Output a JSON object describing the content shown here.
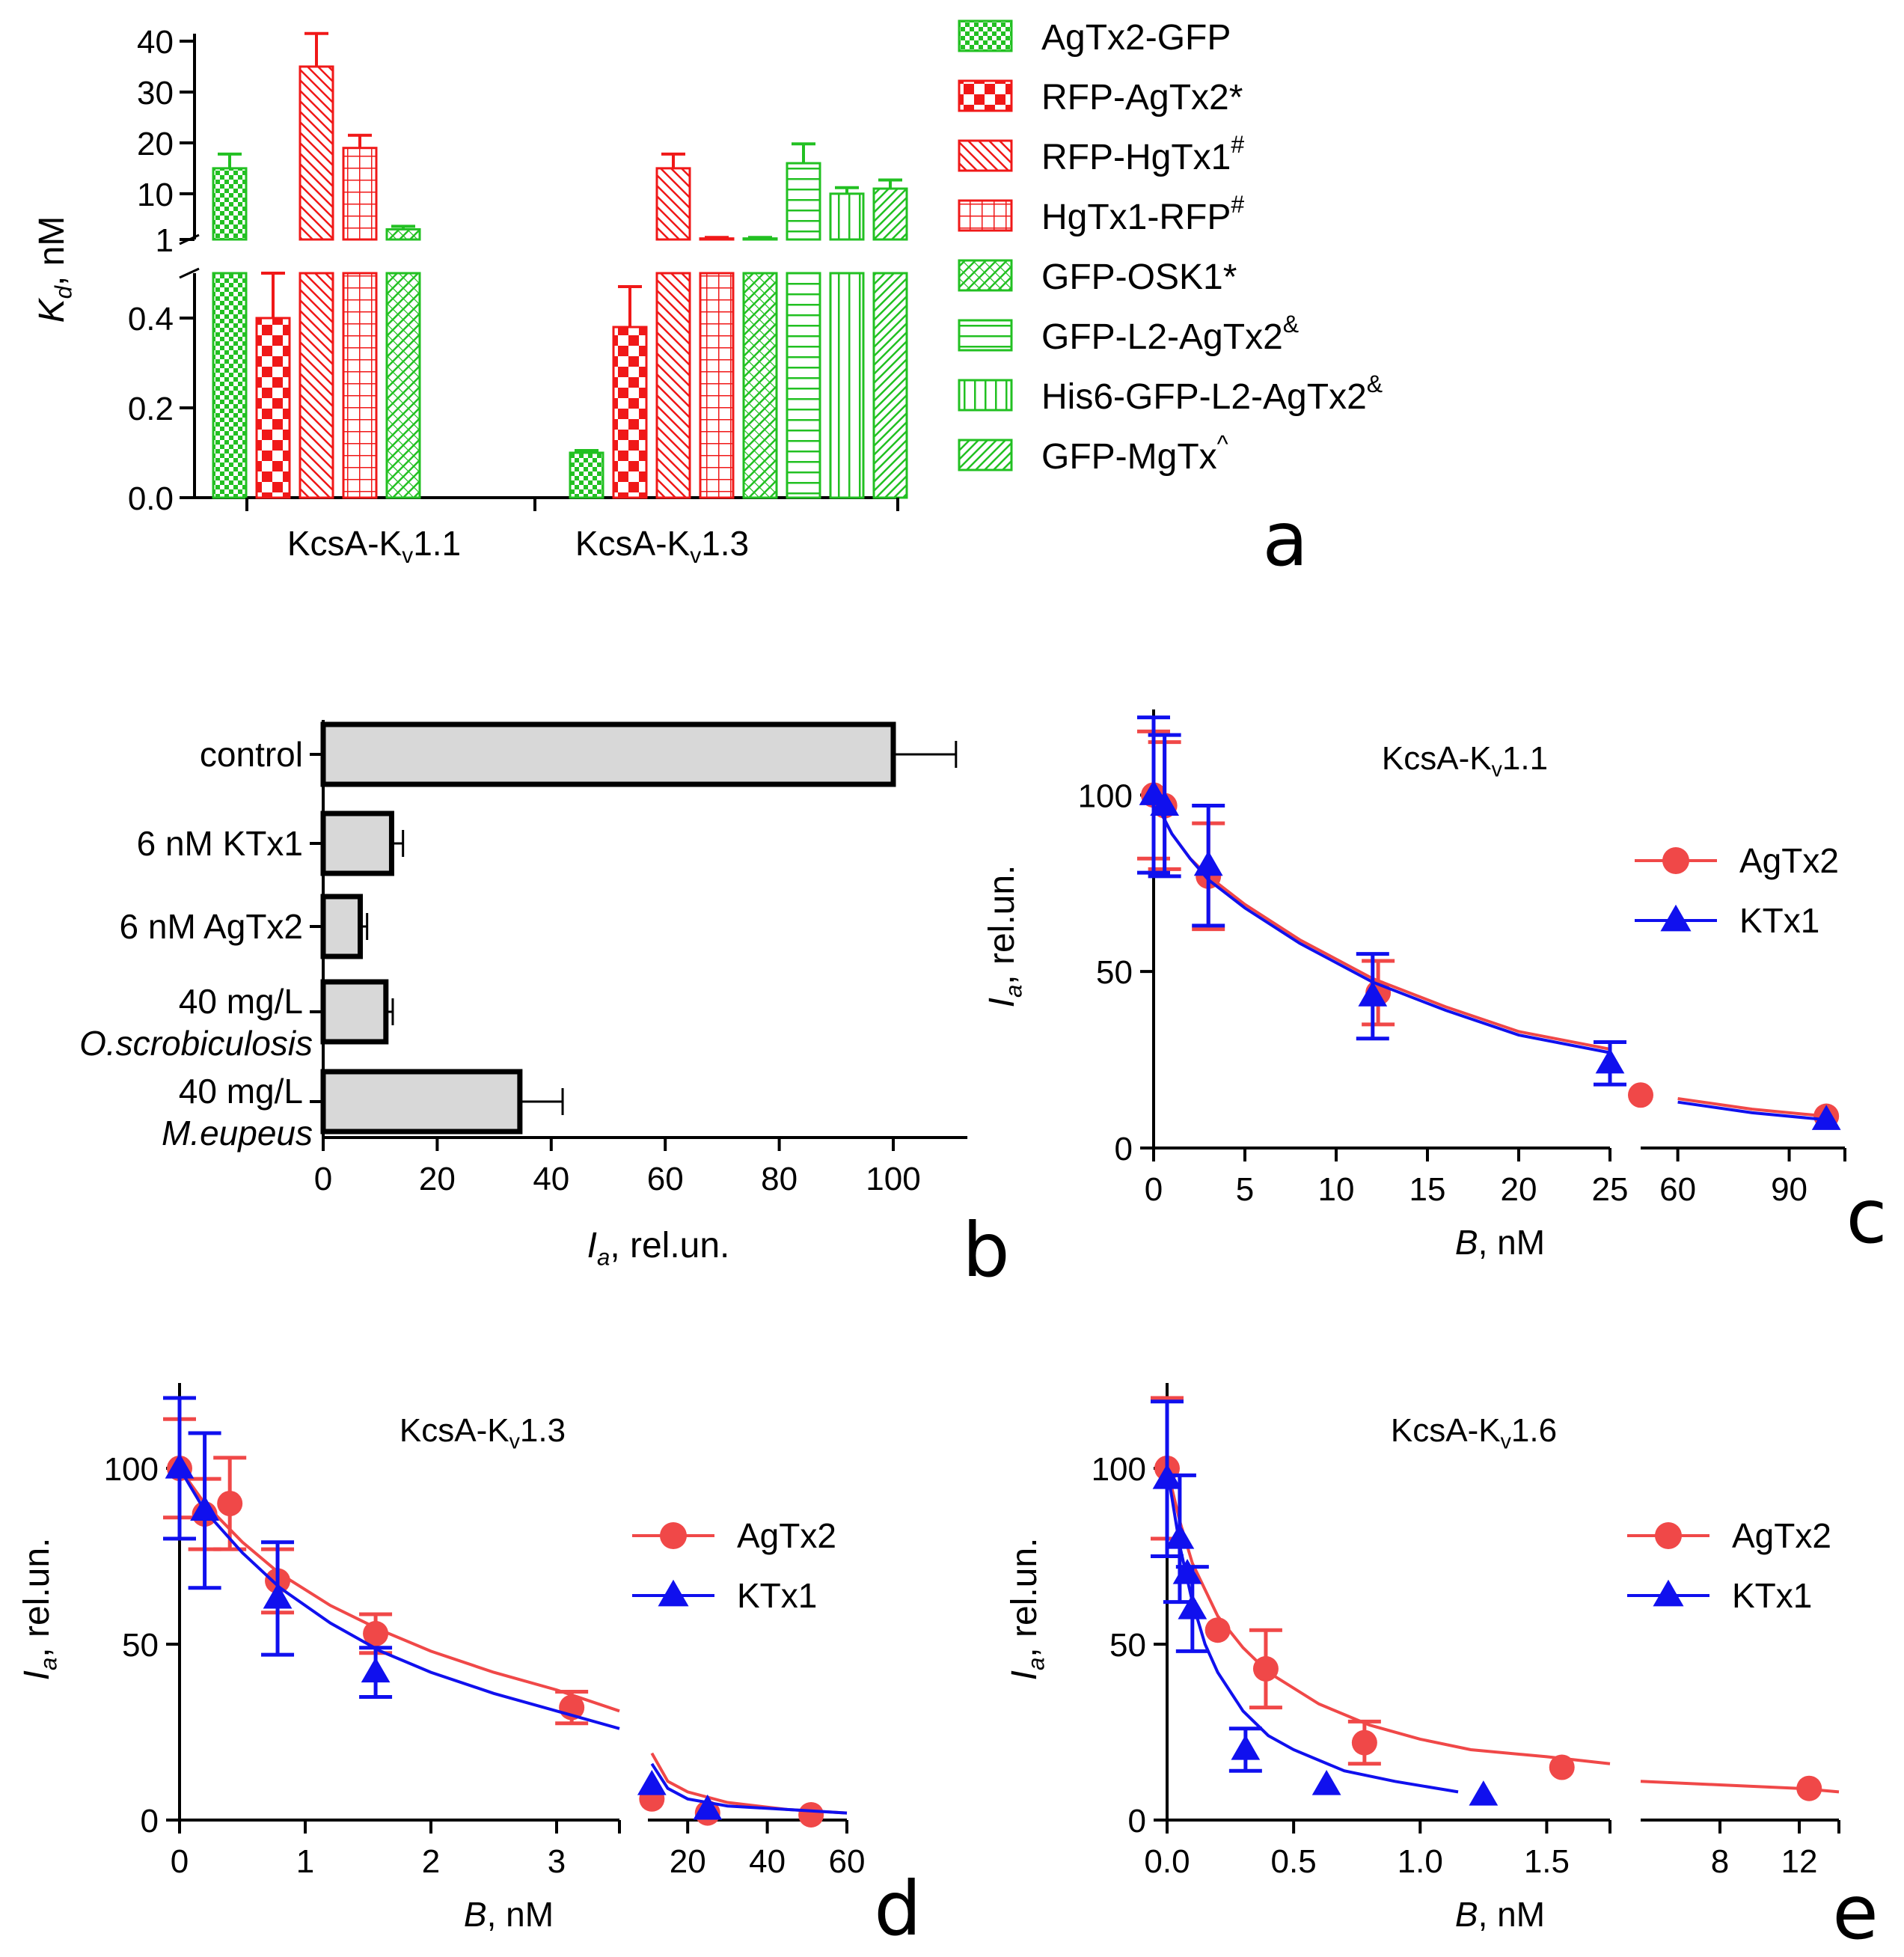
{
  "colors": {
    "green": "#22c022",
    "red": "#f01818",
    "blue": "#1010ee",
    "fit_red": "#f04848",
    "grey": "#d8d8d8",
    "axis": "#000000"
  },
  "chart_data": [
    {
      "id": "a",
      "type": "bar",
      "panel_label": "a",
      "ylabel_main": "K",
      "ylabel_sub": "d",
      "ylabel_unit": ", nM",
      "categories": [
        "KcsA-K",
        "KcsA-K"
      ],
      "category_subs": [
        "v",
        "v"
      ],
      "category_suffixes": [
        "1.1",
        "1.3"
      ],
      "upper_axis": {
        "range": [
          1,
          40
        ],
        "ticks": [
          "40",
          "30",
          "20",
          "10",
          "1"
        ],
        "tick_values": [
          40,
          30,
          20,
          10,
          1
        ]
      },
      "lower_axis": {
        "range": [
          0,
          0.5
        ],
        "ticks": [
          "0.4",
          "0.2",
          "0.0"
        ],
        "tick_values": [
          0.4,
          0.2,
          0.0
        ]
      },
      "series": [
        {
          "name": "AgTx2-GFP",
          "sup": "",
          "color": "green",
          "pattern": "check",
          "values": [
            15,
            0.1
          ],
          "errors": [
            2.8,
            0.005
          ]
        },
        {
          "name": "RFP-AgTx2*",
          "sup": "",
          "color": "red",
          "pattern": "bigcheck",
          "values": [
            0.4,
            0.38
          ],
          "errors": [
            0.1,
            0.09
          ]
        },
        {
          "name": "RFP-HgTx1",
          "sup": "#",
          "color": "red",
          "pattern": "diag",
          "values": [
            35,
            15
          ],
          "errors": [
            6.5,
            2.8
          ]
        },
        {
          "name": "HgTx1-RFP",
          "sup": "#",
          "color": "red",
          "pattern": "grid",
          "values": [
            19,
            1.2
          ],
          "errors": [
            2.5,
            0.2
          ]
        },
        {
          "name": "GFP-OSK1*",
          "sup": "",
          "color": "green",
          "pattern": "hatchcross",
          "values": [
            3,
            1.2
          ],
          "errors": [
            0.6,
            0.2
          ]
        },
        {
          "name": "GFP-L2-AgTx2",
          "sup": "&",
          "color": "green",
          "pattern": "horiz",
          "values": [
            null,
            16
          ],
          "errors": [
            null,
            3.8
          ]
        },
        {
          "name": "His6-GFP-L2-AgTx2",
          "sup": "&",
          "color": "green",
          "pattern": "vert",
          "values": [
            null,
            10
          ],
          "errors": [
            null,
            1.2
          ]
        },
        {
          "name": "GFP-MgTx",
          "sup": "^",
          "color": "green",
          "pattern": "diag2",
          "values": [
            null,
            11
          ],
          "errors": [
            null,
            1.7
          ]
        }
      ]
    },
    {
      "id": "b",
      "type": "bar",
      "orientation": "horizontal",
      "panel_label": "b",
      "xlabel_main": "I",
      "xlabel_sub": "a",
      "xlabel_unit": ", rel.un.",
      "xlim": [
        0,
        113
      ],
      "xticks": [
        "0",
        "20",
        "40",
        "60",
        "80",
        "100"
      ],
      "xtick_values": [
        0,
        20,
        40,
        60,
        80,
        100
      ],
      "categories": [
        {
          "line1": "control",
          "line2": ""
        },
        {
          "line1": "6 nM KTx1",
          "line2": ""
        },
        {
          "line1": "6 nM AgTx2",
          "line2": ""
        },
        {
          "line1": "40 mg/L",
          "line2": "O.scrobiculosis"
        },
        {
          "line1": "40 mg/L",
          "line2": "M.eupeus"
        }
      ],
      "values": [
        100,
        12,
        6.5,
        11,
        34.5
      ],
      "errors": [
        11,
        2,
        1.2,
        1.2,
        7.5
      ]
    },
    {
      "id": "c",
      "type": "scatter",
      "panel_label": "c",
      "title": "KcsA-K",
      "title_sub": "v",
      "title_suffix": "1.1",
      "ylabel_main": "I",
      "ylabel_sub": "a",
      "ylabel_unit": ", rel.un.",
      "xlabel_main": "B",
      "xlabel_unit": ", nM",
      "ylim": [
        0,
        120
      ],
      "yticks": [
        "0",
        "50",
        "100"
      ],
      "ytick_values": [
        0,
        50,
        100
      ],
      "x_segments": [
        {
          "range": [
            0,
            25
          ],
          "ticks": [
            "0",
            "5",
            "10",
            "15",
            "20",
            "25"
          ],
          "tick_values": [
            0,
            5,
            10,
            15,
            20,
            25
          ]
        },
        {
          "range": [
            50,
            105
          ],
          "ticks": [
            "60",
            "90"
          ],
          "tick_values": [
            60,
            90
          ]
        }
      ],
      "series": [
        {
          "name": "AgTx2",
          "color": "red",
          "marker": "circle",
          "x": [
            0,
            0.6,
            3,
            12.3,
            50,
            100
          ],
          "y": [
            100,
            97,
            77,
            44,
            15,
            9
          ],
          "err": [
            18,
            18,
            15,
            9,
            0,
            0
          ],
          "fit": [
            [
              0,
              100
            ],
            [
              0.5,
              94
            ],
            [
              1,
              89
            ],
            [
              2,
              82
            ],
            [
              3,
              77
            ],
            [
              5,
              69
            ],
            [
              8,
              59
            ],
            [
              12,
              48
            ],
            [
              16,
              40
            ],
            [
              20,
              33
            ],
            [
              25,
              28
            ],
            [
              48,
              17
            ],
            [
              60,
              14
            ],
            [
              80,
              11
            ],
            [
              100,
              9
            ]
          ]
        },
        {
          "name": "KTx1",
          "color": "blue",
          "marker": "triangle",
          "x": [
            0,
            0.6,
            3,
            12,
            25,
            100
          ],
          "y": [
            100,
            97,
            80,
            43,
            24,
            8
          ],
          "err": [
            22,
            20,
            17,
            12,
            6,
            0
          ],
          "fit": [
            [
              0,
              100
            ],
            [
              0.5,
              94
            ],
            [
              1,
              89
            ],
            [
              2,
              82
            ],
            [
              3,
              76
            ],
            [
              5,
              68
            ],
            [
              8,
              58
            ],
            [
              12,
              47
            ],
            [
              16,
              39
            ],
            [
              20,
              32
            ],
            [
              25,
              27
            ],
            [
              48,
              16
            ],
            [
              60,
              13
            ],
            [
              80,
              10
            ],
            [
              100,
              8
            ]
          ]
        }
      ]
    },
    {
      "id": "d",
      "type": "scatter",
      "panel_label": "d",
      "title": "KcsA-K",
      "title_sub": "v",
      "title_suffix": "1.3",
      "ylabel_main": "I",
      "ylabel_sub": "a",
      "ylabel_unit": ", rel.un.",
      "xlabel_main": "B",
      "xlabel_unit": ", nM",
      "ylim": [
        0,
        120
      ],
      "yticks": [
        "0",
        "50",
        "100"
      ],
      "ytick_values": [
        0,
        50,
        100
      ],
      "x_segments": [
        {
          "range": [
            0,
            3.5
          ],
          "ticks": [
            "0",
            "1",
            "2",
            "3"
          ],
          "tick_values": [
            0,
            1,
            2,
            3
          ]
        },
        {
          "range": [
            10,
            60
          ],
          "ticks": [
            "20",
            "40",
            "60"
          ],
          "tick_values": [
            20,
            40,
            60
          ]
        }
      ],
      "series": [
        {
          "name": "AgTx2",
          "color": "red",
          "marker": "circle",
          "x": [
            0,
            0.2,
            0.4,
            0.78,
            1.56,
            3.12,
            11,
            25,
            51
          ],
          "y": [
            100,
            87,
            90,
            68,
            53,
            32,
            6,
            2,
            1.5
          ],
          "err": [
            14,
            10,
            13,
            9,
            5.5,
            4.5,
            0,
            0,
            0
          ],
          "fit": [
            [
              0,
              100
            ],
            [
              0.2,
              90
            ],
            [
              0.5,
              79
            ],
            [
              0.8,
              70
            ],
            [
              1.2,
              61
            ],
            [
              1.6,
              54
            ],
            [
              2.0,
              48
            ],
            [
              2.5,
              42
            ],
            [
              3.0,
              37
            ],
            [
              3.5,
              31
            ],
            [
              11,
              19
            ],
            [
              15,
              11
            ],
            [
              20,
              8
            ],
            [
              30,
              5
            ],
            [
              45,
              3
            ],
            [
              60,
              2
            ]
          ]
        },
        {
          "name": "KTx1",
          "color": "blue",
          "marker": "triangle",
          "x": [
            0,
            0.2,
            0.78,
            1.56,
            11,
            25
          ],
          "y": [
            100,
            88,
            63,
            42,
            10,
            3
          ],
          "err": [
            20,
            22,
            16,
            7,
            0,
            0
          ],
          "fit": [
            [
              0,
              100
            ],
            [
              0.2,
              88
            ],
            [
              0.5,
              76
            ],
            [
              0.8,
              66
            ],
            [
              1.2,
              56
            ],
            [
              1.6,
              48
            ],
            [
              2.0,
              42
            ],
            [
              2.5,
              36
            ],
            [
              3.0,
              31
            ],
            [
              3.5,
              26
            ],
            [
              11,
              16
            ],
            [
              15,
              9
            ],
            [
              20,
              6
            ],
            [
              30,
              4
            ],
            [
              45,
              3
            ],
            [
              60,
              2
            ]
          ]
        }
      ]
    },
    {
      "id": "e",
      "type": "scatter",
      "panel_label": "e",
      "title": "KcsA-K",
      "title_sub": "v",
      "title_suffix": "1.6",
      "ylabel_main": "I",
      "ylabel_sub": "a",
      "ylabel_unit": ", rel.un.",
      "xlabel_main": "B",
      "xlabel_unit": ", nM",
      "ylim": [
        0,
        120
      ],
      "yticks": [
        "0",
        "50",
        "100"
      ],
      "ytick_values": [
        0,
        50,
        100
      ],
      "x_segments": [
        {
          "range": [
            0,
            1.75
          ],
          "ticks": [
            "0.0",
            "0.5",
            "1.0",
            "1.5"
          ],
          "tick_values": [
            0,
            0.5,
            1.0,
            1.5
          ]
        },
        {
          "range": [
            4,
            14
          ],
          "ticks": [
            "8",
            "12"
          ],
          "tick_values": [
            8,
            12
          ]
        }
      ],
      "series": [
        {
          "name": "AgTx2",
          "color": "red",
          "marker": "circle",
          "x": [
            0,
            0.2,
            0.39,
            0.78,
            1.56,
            12.5
          ],
          "y": [
            100,
            54,
            43,
            22,
            15,
            9
          ],
          "err": [
            20,
            0,
            11,
            6,
            0,
            0
          ],
          "fit": [
            [
              0,
              100
            ],
            [
              0.05,
              85
            ],
            [
              0.1,
              73
            ],
            [
              0.2,
              58
            ],
            [
              0.3,
              49
            ],
            [
              0.4,
              42
            ],
            [
              0.6,
              33
            ],
            [
              0.8,
              27
            ],
            [
              1.0,
              23
            ],
            [
              1.2,
              20
            ],
            [
              1.5,
              18
            ],
            [
              1.75,
              16
            ],
            [
              4,
              11
            ],
            [
              8,
              10
            ],
            [
              12,
              9
            ],
            [
              14,
              8
            ]
          ]
        },
        {
          "name": "KTx1",
          "color": "blue",
          "marker": "triangle",
          "x": [
            0,
            0.05,
            0.08,
            0.1,
            0.31,
            0.63,
            1.25
          ],
          "y": [
            97,
            80,
            70,
            60,
            20,
            10,
            7
          ],
          "err": [
            22,
            18,
            0,
            12,
            6,
            0,
            0
          ],
          "fit": [
            [
              0,
              100
            ],
            [
              0.05,
              78
            ],
            [
              0.1,
              62
            ],
            [
              0.15,
              50
            ],
            [
              0.2,
              42
            ],
            [
              0.3,
              31
            ],
            [
              0.4,
              24
            ],
            [
              0.5,
              20
            ],
            [
              0.7,
              14
            ],
            [
              0.9,
              11
            ],
            [
              1.15,
              8
            ]
          ]
        }
      ]
    }
  ]
}
